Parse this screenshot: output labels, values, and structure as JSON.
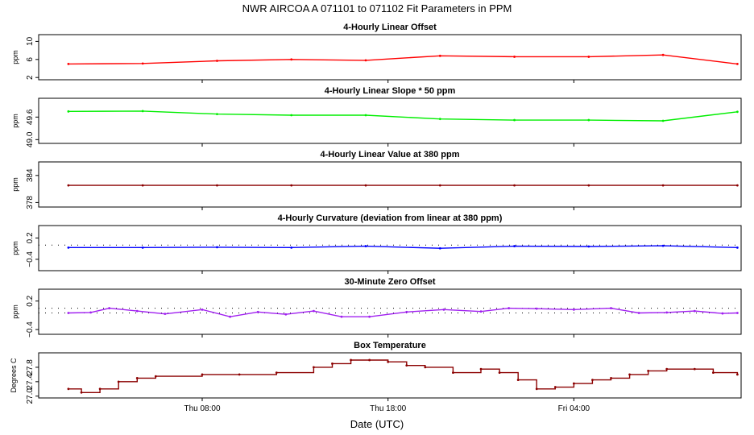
{
  "figure": {
    "title": "NWR   AIRCOA A   071101 to 071102   Fit Parameters in PPM",
    "xlabel": "Date (UTC)",
    "x_ticks": [
      {
        "label": "Thu 08:00",
        "hour": 8
      },
      {
        "label": "Thu 18:00",
        "hour": 18
      },
      {
        "label": "Fri 04:00",
        "hour": 28
      }
    ],
    "x_range_hours": [
      -0.8,
      37.0
    ]
  },
  "chart_data": [
    {
      "type": "line",
      "title": "4-Hourly Linear Offset",
      "ylabel": "ppm",
      "color": "#ff0000",
      "ylim": [
        1.5,
        11.5
      ],
      "yticks": [
        2,
        6,
        10
      ],
      "ytick_labels": [
        "2",
        "6",
        "10"
      ],
      "x_hours": [
        0.8,
        4.8,
        8.8,
        12.8,
        16.8,
        20.8,
        24.8,
        28.8,
        32.8,
        36.8
      ],
      "values": [
        5.0,
        5.1,
        5.7,
        6.0,
        5.8,
        6.8,
        6.6,
        6.6,
        7.0,
        5.0
      ],
      "ref_lines": [],
      "style": "line"
    },
    {
      "type": "line",
      "title": "4-Hourly Linear Slope * 50 ppm",
      "ylabel": "ppm",
      "color": "#00ee00",
      "ylim": [
        48.9,
        50.1
      ],
      "yticks": [
        49.0,
        49.6
      ],
      "ytick_labels": [
        "49.0",
        "49.6"
      ],
      "x_hours": [
        0.8,
        4.8,
        8.8,
        12.8,
        16.8,
        20.8,
        24.8,
        28.8,
        32.8,
        36.8
      ],
      "values": [
        49.75,
        49.76,
        49.68,
        49.65,
        49.65,
        49.55,
        49.52,
        49.52,
        49.5,
        49.74
      ],
      "ref_lines": [],
      "style": "line"
    },
    {
      "type": "line",
      "title": "4-Hourly Linear Value at 380 ppm",
      "ylabel": "ppm",
      "color": "#8b0000",
      "ylim": [
        377,
        387
      ],
      "yticks": [
        378,
        384
      ],
      "ytick_labels": [
        "378",
        "384"
      ],
      "x_hours": [
        0.8,
        4.8,
        8.8,
        12.8,
        16.8,
        20.8,
        24.8,
        28.8,
        32.8,
        36.8
      ],
      "values": [
        381.8,
        381.8,
        381.8,
        381.8,
        381.8,
        381.8,
        381.8,
        381.8,
        381.8,
        381.8
      ],
      "ref_lines": [],
      "style": "line"
    },
    {
      "type": "line",
      "title": "4-Hourly Curvature (deviation from linear at 380 ppm)",
      "ylabel": "ppm",
      "color": "#0000ff",
      "ylim": [
        -0.72,
        0.55
      ],
      "yticks": [
        -0.4,
        0.2
      ],
      "ytick_labels": [
        "−0.4",
        "0.2"
      ],
      "x_hours": [
        0.8,
        4.8,
        8.8,
        12.8,
        16.8,
        20.8,
        24.8,
        28.8,
        32.8,
        36.8
      ],
      "values": [
        -0.07,
        -0.07,
        -0.06,
        -0.07,
        -0.03,
        -0.09,
        -0.03,
        -0.04,
        -0.02,
        -0.07
      ],
      "ref_lines": [
        {
          "y": 0.0,
          "style": "dotted",
          "color": "#000000"
        }
      ],
      "style": "line"
    },
    {
      "type": "line",
      "title": "30-Minute Zero Offset",
      "ylabel": "ppm",
      "color": "#a020f0",
      "ylim": [
        -0.5,
        0.45
      ],
      "yticks": [
        -0.4,
        0.2
      ],
      "ytick_labels": [
        "−0.4",
        "0.2"
      ],
      "x_hours": [
        0.8,
        2.0,
        3.0,
        4.5,
        6.0,
        8.0,
        9.5,
        11.0,
        12.5,
        14.0,
        15.5,
        17.0,
        19.0,
        21.0,
        23.0,
        24.5,
        26.0,
        28.0,
        30.0,
        31.5,
        33.0,
        34.5,
        36.0,
        36.8
      ],
      "values": [
        -0.05,
        -0.04,
        0.05,
        -0.01,
        -0.07,
        0.02,
        -0.13,
        -0.03,
        -0.08,
        -0.01,
        -0.13,
        -0.13,
        -0.03,
        0.02,
        -0.02,
        0.05,
        0.04,
        0.02,
        0.05,
        -0.05,
        -0.04,
        -0.01,
        -0.06,
        -0.05
      ],
      "ref_lines": [
        {
          "y": 0.05,
          "style": "dotted",
          "color": "#000000"
        },
        {
          "y": -0.05,
          "style": "dotted",
          "color": "#000000"
        }
      ],
      "style": "line"
    },
    {
      "type": "line",
      "title": "Box Temperature",
      "ylabel": "Degrees C",
      "color": "#8b0000",
      "ylim": [
        26.95,
        28.2
      ],
      "yticks": [
        27.0,
        27.4,
        27.8
      ],
      "ytick_labels": [
        "27.0",
        "27.4",
        "27.8"
      ],
      "x_hours": [
        0.8,
        1.5,
        2.5,
        3.5,
        4.5,
        5.5,
        8.0,
        10.0,
        12.0,
        14.0,
        15.0,
        16.0,
        17.0,
        18.0,
        19.0,
        20.0,
        21.5,
        23.0,
        24.0,
        25.0,
        26.0,
        27.0,
        28.0,
        29.0,
        30.0,
        31.0,
        32.0,
        33.0,
        34.5,
        35.5,
        36.8
      ],
      "values": [
        27.2,
        27.1,
        27.2,
        27.4,
        27.5,
        27.55,
        27.6,
        27.6,
        27.65,
        27.8,
        27.9,
        28.0,
        28.0,
        27.95,
        27.85,
        27.8,
        27.65,
        27.75,
        27.65,
        27.45,
        27.2,
        27.25,
        27.35,
        27.45,
        27.5,
        27.6,
        27.7,
        27.75,
        27.75,
        27.65,
        27.6
      ],
      "ref_lines": [],
      "style": "step"
    }
  ]
}
